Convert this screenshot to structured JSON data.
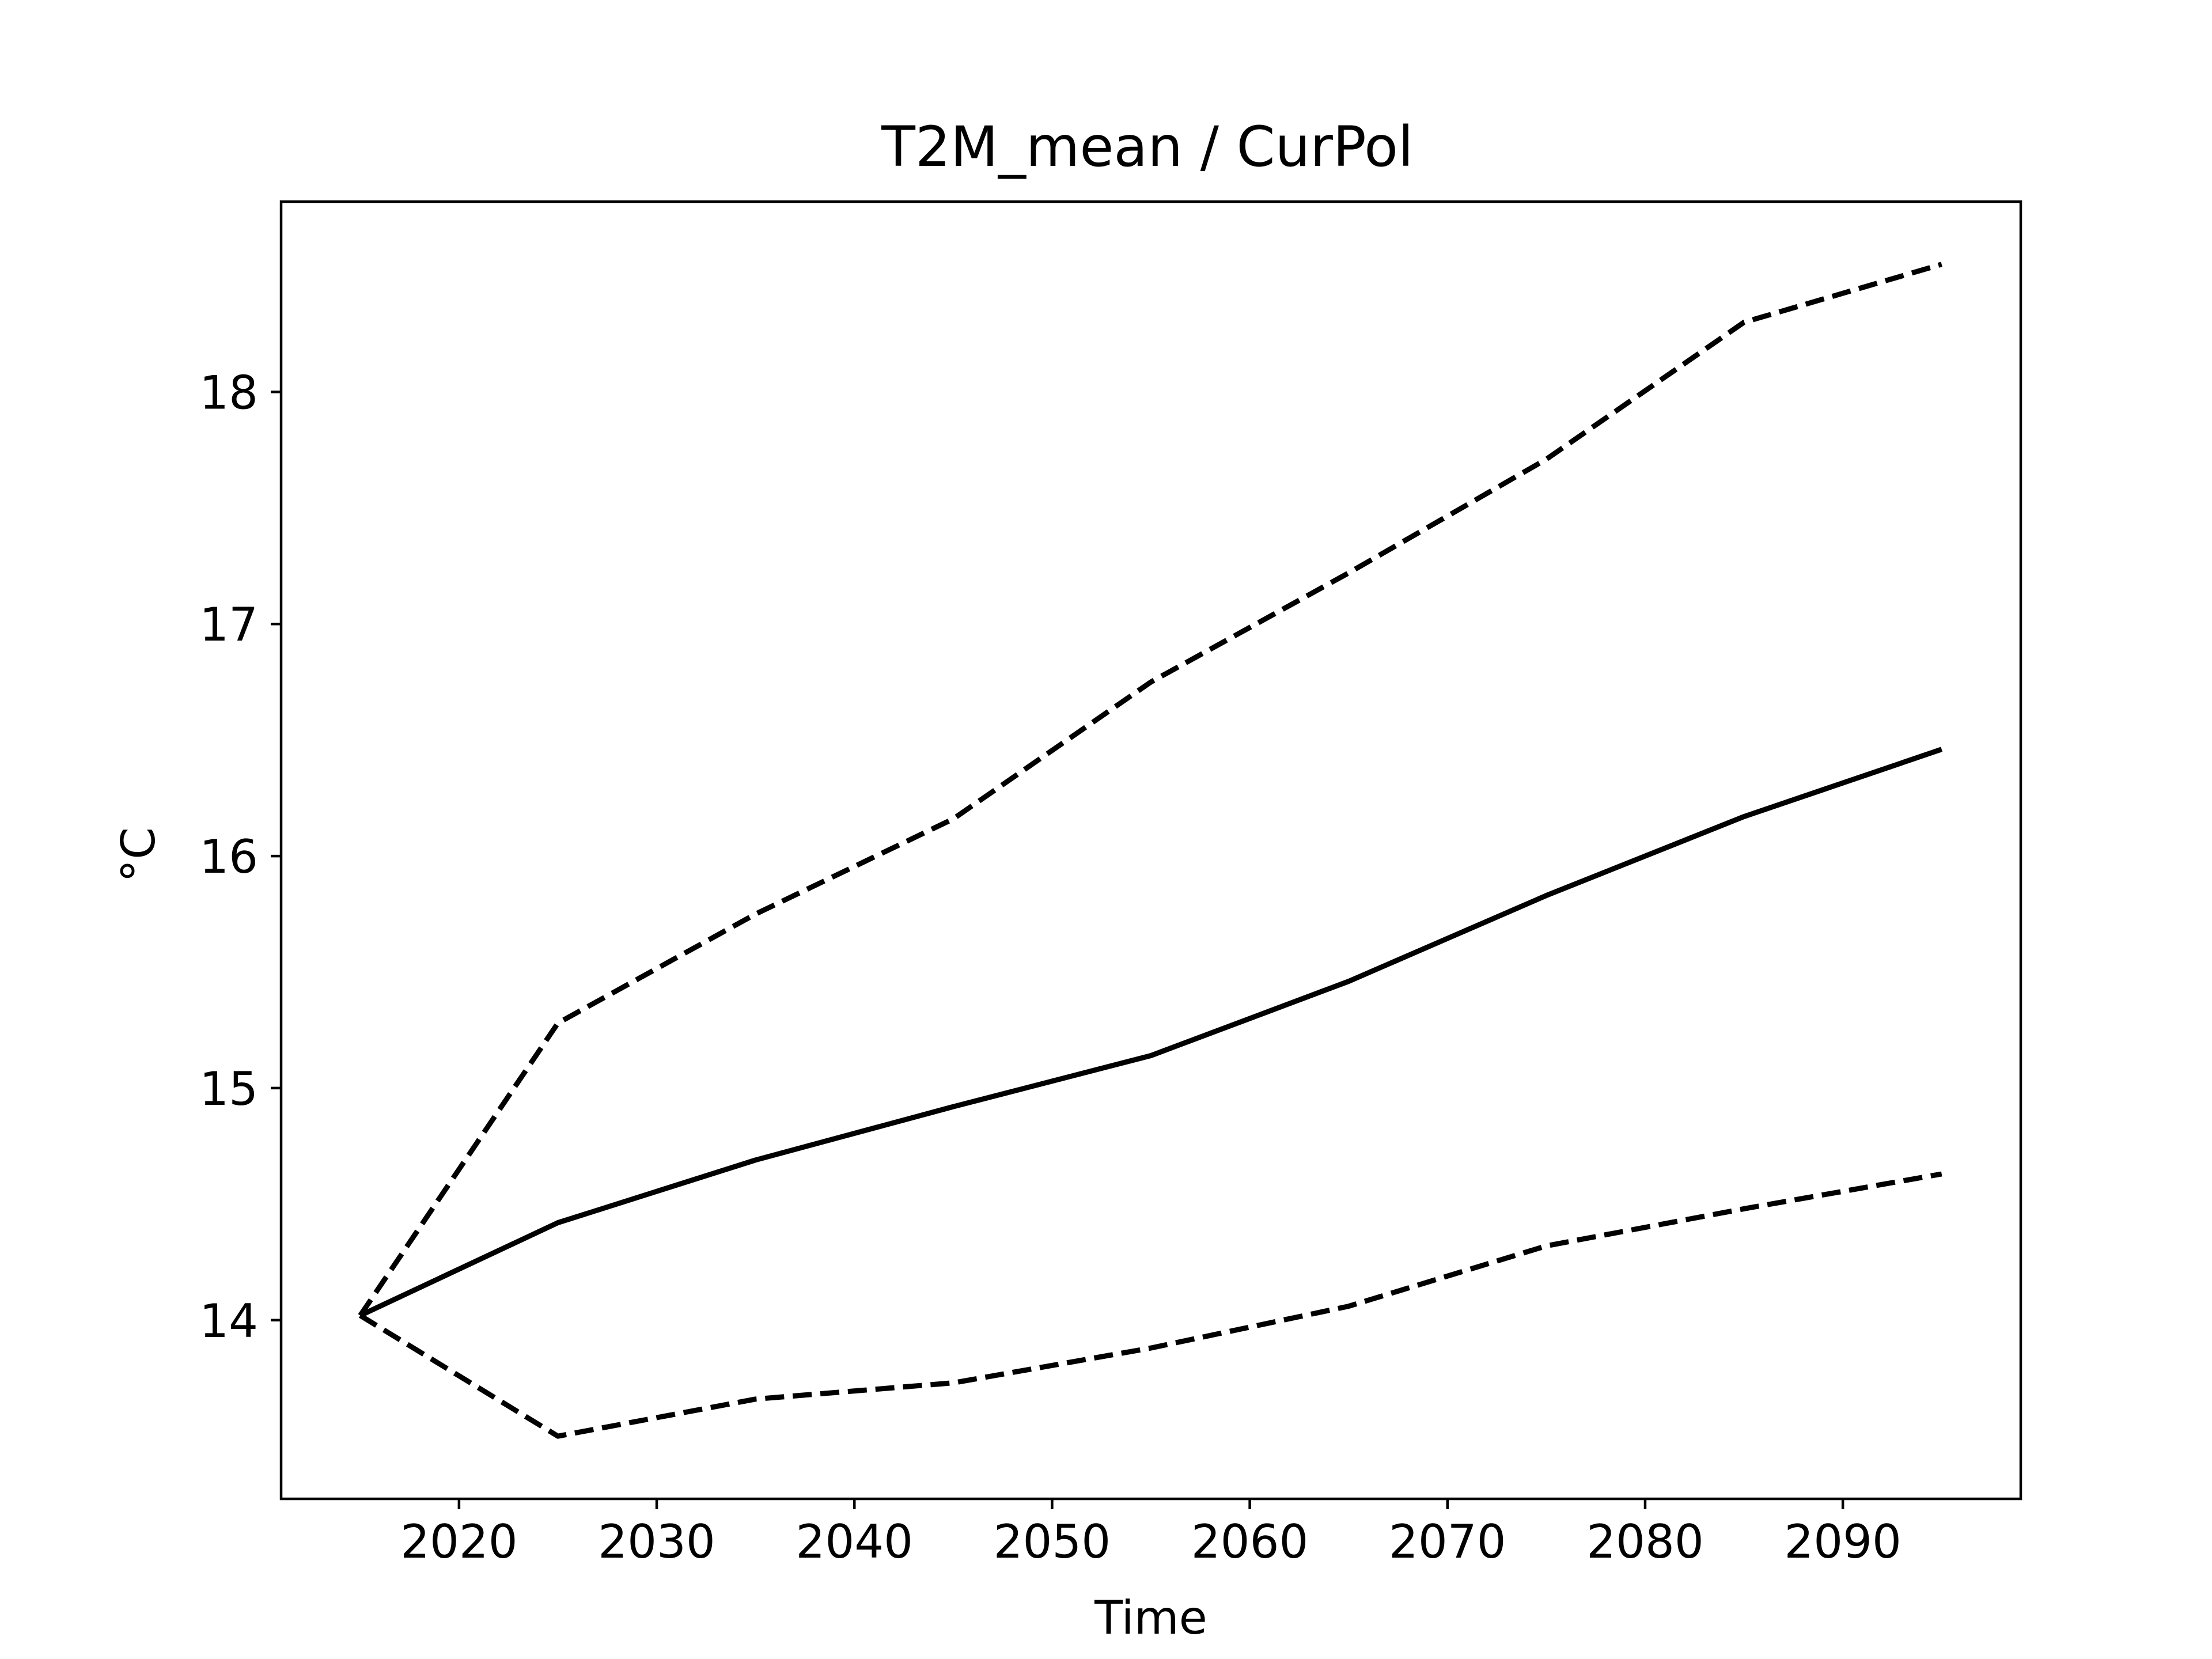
{
  "chart_data": {
    "type": "line",
    "title": "T2M_mean / CurPol",
    "xlabel": "Time",
    "ylabel": "°C",
    "xlim": [
      2011,
      2099
    ],
    "ylim": [
      13.23,
      18.82
    ],
    "x_ticks": [
      2020,
      2030,
      2040,
      2050,
      2060,
      2070,
      2080,
      2090
    ],
    "y_ticks": [
      14,
      15,
      16,
      17,
      18
    ],
    "grid": false,
    "legend": "none",
    "x": [
      2015,
      2025,
      2035,
      2045,
      2055,
      2065,
      2075,
      2085,
      2095
    ],
    "series": [
      {
        "values": [
          14.02,
          14.42,
          14.69,
          14.92,
          15.14,
          15.46,
          15.83,
          16.17,
          16.46
        ],
        "style": "solid",
        "color": "#000000"
      },
      {
        "values": [
          14.02,
          15.28,
          15.75,
          16.16,
          16.75,
          17.22,
          17.71,
          18.3,
          18.55
        ],
        "style": "dashed",
        "color": "#000000"
      },
      {
        "values": [
          14.02,
          13.5,
          13.66,
          13.73,
          13.88,
          14.06,
          14.32,
          14.48,
          14.63
        ],
        "style": "dashed",
        "color": "#000000"
      }
    ]
  }
}
